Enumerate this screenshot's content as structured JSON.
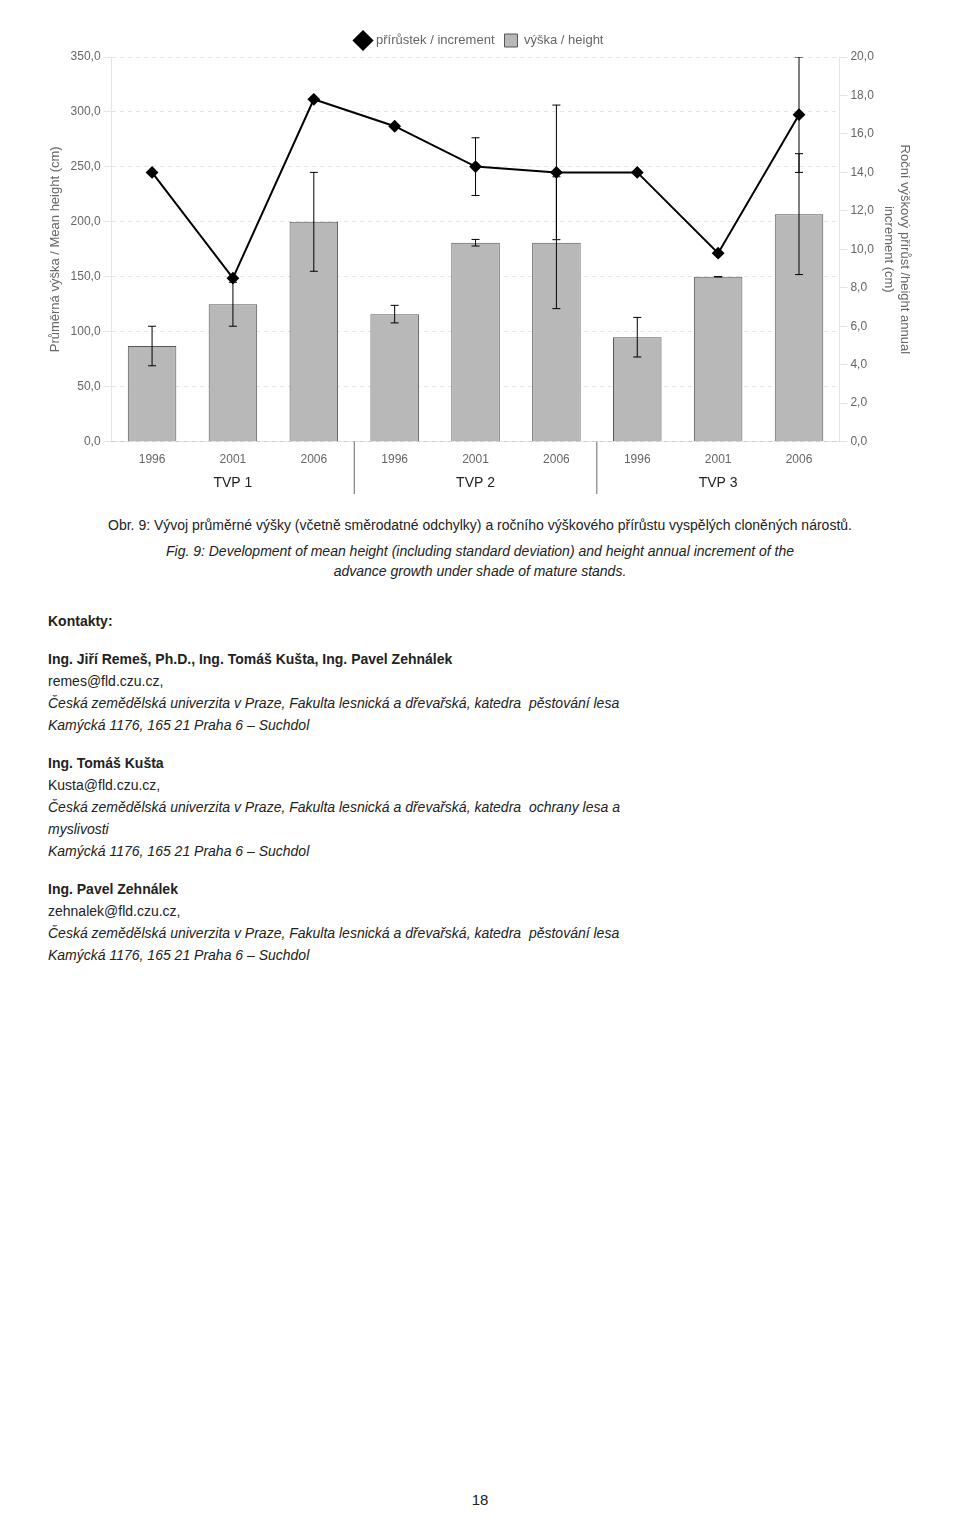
{
  "chart_data": {
    "type": "bar",
    "categories": [
      "1996",
      "2001",
      "2006",
      "1996",
      "2001",
      "2006",
      "1996",
      "2001",
      "2006"
    ],
    "group_labels": [
      "TVP 1",
      "TVP 2",
      "TVP 3"
    ],
    "series": [
      {
        "name": "výška / height",
        "type": "bar",
        "color": "#b8b8b8",
        "values": [
          87,
          125,
          200,
          116,
          181,
          181,
          95,
          150,
          207
        ],
        "errors": [
          18,
          20,
          45,
          8,
          3,
          60,
          18,
          0,
          55
        ]
      },
      {
        "name": "přírůstek / increment",
        "type": "line",
        "color": "#000000",
        "marker": "diamond",
        "axis": "y2",
        "values": [
          14.0,
          8.5,
          17.8,
          16.4,
          14.3,
          14.0,
          14.0,
          9.8,
          17.0
        ],
        "errors": [
          0,
          0,
          0,
          0,
          1.5,
          3.5,
          0,
          0,
          3.0
        ]
      }
    ],
    "ylabel": "Průměrná výška / Mean height (cm)",
    "y2label": "Roční výškový přírůst /height annual\nincrement (cm)",
    "ylim": [
      0,
      350
    ],
    "yticks": [
      {
        "value": 0,
        "label": "0,0"
      },
      {
        "value": 50,
        "label": "50,0"
      },
      {
        "value": 100,
        "label": "100,0"
      },
      {
        "value": 150,
        "label": "150,0"
      },
      {
        "value": 200,
        "label": "200,0"
      },
      {
        "value": 250,
        "label": "250,0"
      },
      {
        "value": 300,
        "label": "300,0"
      },
      {
        "value": 350,
        "label": "350,0"
      }
    ],
    "y2lim": [
      0,
      20
    ],
    "y2ticks": [
      {
        "value": 0,
        "label": "0,0"
      },
      {
        "value": 2,
        "label": "2,0"
      },
      {
        "value": 4,
        "label": "4,0"
      },
      {
        "value": 6,
        "label": "6,0"
      },
      {
        "value": 8,
        "label": "8,0"
      },
      {
        "value": 10,
        "label": "10,0"
      },
      {
        "value": 12,
        "label": "12,0"
      },
      {
        "value": 14,
        "label": "14,0"
      },
      {
        "value": 16,
        "label": "16,0"
      },
      {
        "value": 18,
        "label": "18,0"
      },
      {
        "value": 20,
        "label": "20,0"
      }
    ],
    "grid": true,
    "legend": "top"
  },
  "caption": [
    "Obr. 9: Vývoj průměrné výšky (včetně směrodatné odchylky) a ročního výškového přírůstu vyspělých cloněných nárostů.",
    "Fig. 9: Development of mean height (including standard deviation) and height annual increment of the",
    "advance growth under shade of mature stands."
  ],
  "contacts": {
    "title": "Kontakty:",
    "entries": [
      {
        "name": "Ing. Jiří Remeš, Ph.D., Ing. Tomáš Kušta, Ing. Pavel Zehnálek",
        "email": "remes@fld.czu.cz,",
        "lines": [
          "Česká zemědělská univerzita v Praze, Fakulta lesnická a dřevařská, katedra  pěstování lesa",
          "Kamýcká 1176, 165 21 Praha 6 – Suchdol"
        ]
      },
      {
        "name": "Ing. Tomáš Kušta",
        "email": "Kusta@fld.czu.cz,",
        "lines": [
          "Česká zemědělská univerzita v Praze, Fakulta lesnická a dřevařská, katedra  ochrany lesa a",
          "myslivosti",
          "Kamýcká 1176, 165 21 Praha 6 – Suchdol"
        ]
      },
      {
        "name": "Ing. Pavel Zehnálek",
        "email": "zehnalek@fld.czu.cz,",
        "lines": [
          "Česká zemědělská univerzita v Praze, Fakulta lesnická a dřevařská, katedra  pěstování lesa",
          "Kamýcká 1176, 165 21 Praha 6 – Suchdol"
        ]
      }
    ]
  },
  "page_number": "18"
}
